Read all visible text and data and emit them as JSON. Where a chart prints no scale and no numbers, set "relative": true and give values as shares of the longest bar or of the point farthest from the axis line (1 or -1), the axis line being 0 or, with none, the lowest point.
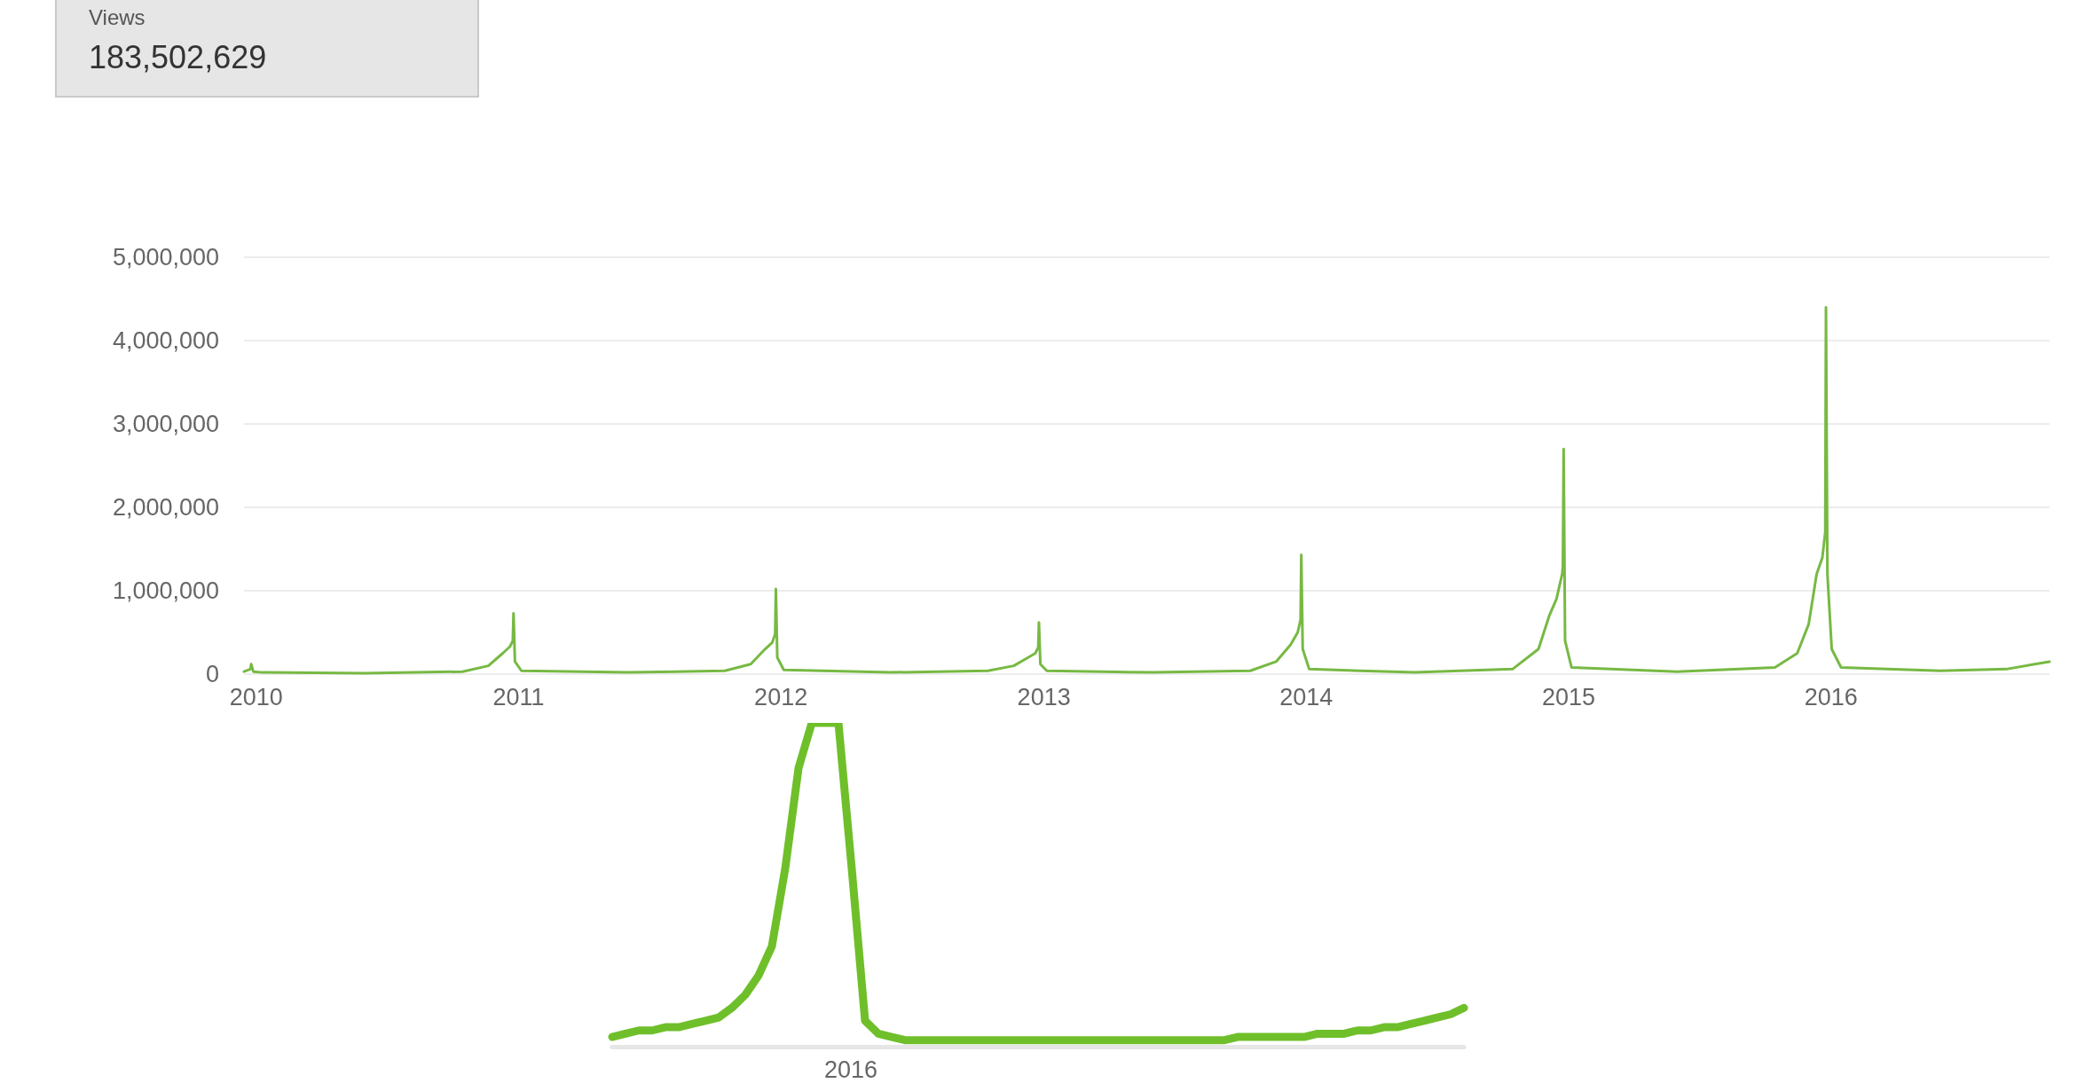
{
  "chart_data": [
    {
      "type": "other",
      "title": "Views",
      "annotations": [
        "183,502,629"
      ]
    },
    {
      "type": "line",
      "grid": "y",
      "marker": "none",
      "line_style": "solid",
      "xlim": [
        "2009-12-15",
        "2016-10-31"
      ],
      "xticks": [
        {
          "value": "2010",
          "label": "2010"
        },
        {
          "value": "2011",
          "label": "2011"
        },
        {
          "value": "2012",
          "label": "2012"
        },
        {
          "value": "2013",
          "label": "2013"
        },
        {
          "value": "2014",
          "label": "2014"
        },
        {
          "value": "2015",
          "label": "2015"
        },
        {
          "value": "2016",
          "label": "2016"
        }
      ],
      "ylim": [
        0,
        5000000
      ],
      "yticks": [
        {
          "value": 0,
          "label": "0"
        },
        {
          "value": 1000000,
          "label": "1,000,000"
        },
        {
          "value": 2000000,
          "label": "2,000,000"
        },
        {
          "value": 3000000,
          "label": "3,000,000"
        },
        {
          "value": 4000000,
          "label": "4,000,000"
        },
        {
          "value": 5000000,
          "label": "5,000,000"
        }
      ],
      "series": [
        {
          "color": "#77b943",
          "x": [
            "2009-12-15",
            "2009-12-24",
            "2009-12-25",
            "2009-12-28",
            "2010-01-10",
            "2010-06-01",
            "2010-10-15",
            "2010-11-20",
            "2010-12-10",
            "2010-12-20",
            "2010-12-24",
            "2010-12-25",
            "2010-12-27",
            "2011-01-05",
            "2011-06-01",
            "2011-10-15",
            "2011-11-20",
            "2011-12-10",
            "2011-12-20",
            "2011-12-24",
            "2011-12-25",
            "2011-12-27",
            "2012-01-05",
            "2012-06-01",
            "2012-10-15",
            "2012-11-20",
            "2012-12-10",
            "2012-12-20",
            "2012-12-24",
            "2012-12-25",
            "2012-12-27",
            "2013-01-05",
            "2013-06-01",
            "2013-10-15",
            "2013-11-20",
            "2013-12-10",
            "2013-12-20",
            "2013-12-24",
            "2013-12-25",
            "2013-12-27",
            "2014-01-05",
            "2014-06-01",
            "2014-10-15",
            "2014-11-20",
            "2014-12-05",
            "2014-12-15",
            "2014-12-23",
            "2014-12-24",
            "2014-12-25",
            "2014-12-27",
            "2015-01-05",
            "2015-06-01",
            "2015-10-15",
            "2015-11-15",
            "2015-12-01",
            "2015-12-12",
            "2015-12-20",
            "2015-12-24",
            "2015-12-25",
            "2015-12-27",
            "2016-01-02",
            "2016-01-15",
            "2016-06-01",
            "2016-09-01",
            "2016-10-31"
          ],
          "values": [
            30000,
            60000,
            120000,
            30000,
            20000,
            10000,
            30000,
            100000,
            250000,
            330000,
            400000,
            730000,
            150000,
            40000,
            20000,
            40000,
            120000,
            300000,
            380000,
            480000,
            1020000,
            200000,
            50000,
            20000,
            40000,
            100000,
            200000,
            250000,
            320000,
            620000,
            120000,
            40000,
            20000,
            40000,
            150000,
            350000,
            500000,
            650000,
            1430000,
            300000,
            60000,
            20000,
            60000,
            300000,
            700000,
            900000,
            1200000,
            1300000,
            2700000,
            400000,
            80000,
            30000,
            80000,
            250000,
            600000,
            1200000,
            1400000,
            1700000,
            4400000,
            1200000,
            300000,
            80000,
            40000,
            60000,
            150000
          ]
        }
      ]
    },
    {
      "type": "line",
      "relative": true,
      "marker": "none",
      "line_style": "solid",
      "annotations": [
        "2016"
      ],
      "categories": [
        null,
        null,
        null,
        null,
        null,
        null,
        null,
        null,
        null,
        null,
        null,
        null,
        null,
        null,
        null,
        null,
        null,
        null,
        null,
        null,
        null,
        null,
        null,
        null,
        null,
        null,
        null,
        null,
        null,
        null,
        null,
        null,
        null,
        null,
        null,
        null,
        null,
        null,
        null,
        null,
        null,
        null,
        null,
        null,
        null,
        null,
        null,
        null,
        null,
        null,
        null,
        null,
        null,
        null,
        null,
        null,
        null,
        null,
        null,
        null,
        null,
        null,
        null,
        null,
        null
      ],
      "series": [
        {
          "color": "#6fbf2a",
          "values": [
            0.03,
            0.04,
            0.05,
            0.05,
            0.06,
            0.06,
            0.07,
            0.08,
            0.09,
            0.12,
            0.16,
            0.22,
            0.31,
            0.55,
            0.86,
            1,
            1,
            1,
            0.55,
            0.08,
            0.04,
            0.03,
            0.02,
            0.02,
            0.02,
            0.02,
            0.02,
            0.02,
            0.02,
            0.02,
            0.02,
            0.02,
            0.02,
            0.02,
            0.02,
            0.02,
            0.02,
            0.02,
            0.02,
            0.02,
            0.02,
            0.02,
            0.02,
            0.02,
            0.02,
            0.02,
            0.02,
            0.03,
            0.03,
            0.03,
            0.03,
            0.03,
            0.03,
            0.04,
            0.04,
            0.04,
            0.05,
            0.05,
            0.06,
            0.06,
            0.07,
            0.08,
            0.09,
            0.1,
            0.12
          ]
        }
      ]
    }
  ]
}
